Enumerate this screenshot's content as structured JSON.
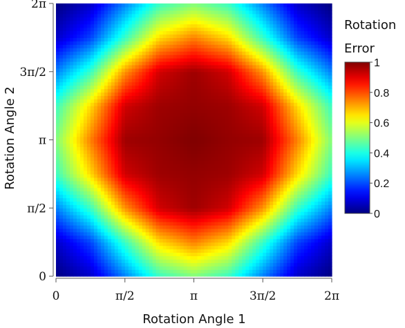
{
  "chart_data": {
    "type": "heatmap",
    "xlabel": "Rotation Angle 1",
    "ylabel": "Rotation Angle 2",
    "x_range": [
      0,
      6.283185307
    ],
    "y_range": [
      0,
      6.283185307
    ],
    "x_ticks": [
      {
        "value": 0,
        "label": "0"
      },
      {
        "value": 1.570796327,
        "label": "π/2"
      },
      {
        "value": 3.141592654,
        "label": "π"
      },
      {
        "value": 4.71238898,
        "label": "3π/2"
      },
      {
        "value": 6.283185307,
        "label": "2π"
      }
    ],
    "y_ticks": [
      {
        "value": 0,
        "label": "0"
      },
      {
        "value": 1.570796327,
        "label": "π/2"
      },
      {
        "value": 3.141592654,
        "label": "π"
      },
      {
        "value": 4.71238898,
        "label": "3π/2"
      },
      {
        "value": 6.283185307,
        "label": "2π"
      }
    ],
    "grid_x": [
      0,
      0.785398163,
      1.570796327,
      2.35619449,
      3.141592654,
      3.926990817,
      4.71238898,
      5.497787144,
      6.283185307
    ],
    "grid_y": [
      0,
      0.785398163,
      1.570796327,
      2.35619449,
      3.141592654,
      3.926990817,
      4.71238898,
      5.497787144,
      6.283185307
    ],
    "z": [
      [
        0.0,
        0.07,
        0.25,
        0.43,
        0.5,
        0.43,
        0.25,
        0.07,
        0.0
      ],
      [
        0.07,
        0.19,
        0.43,
        0.66,
        0.75,
        0.66,
        0.43,
        0.19,
        0.07
      ],
      [
        0.25,
        0.43,
        0.73,
        0.92,
        0.97,
        0.92,
        0.73,
        0.43,
        0.25
      ],
      [
        0.43,
        0.66,
        0.92,
        0.97,
        0.98,
        0.97,
        0.92,
        0.66,
        0.43
      ],
      [
        0.5,
        0.75,
        0.97,
        0.98,
        1.0,
        0.98,
        0.97,
        0.75,
        0.5
      ],
      [
        0.43,
        0.66,
        0.92,
        0.97,
        0.98,
        0.97,
        0.92,
        0.66,
        0.43
      ],
      [
        0.25,
        0.43,
        0.73,
        0.92,
        0.97,
        0.92,
        0.73,
        0.43,
        0.25
      ],
      [
        0.07,
        0.19,
        0.43,
        0.66,
        0.75,
        0.66,
        0.43,
        0.19,
        0.07
      ],
      [
        0.0,
        0.07,
        0.25,
        0.43,
        0.5,
        0.43,
        0.25,
        0.07,
        0.0
      ]
    ],
    "colorscale": "jet",
    "colorbar": {
      "title_lines": [
        "Rotation",
        "Error"
      ],
      "range": [
        0,
        1
      ],
      "ticks": [
        {
          "value": 0,
          "label": "0"
        },
        {
          "value": 0.2,
          "label": "0.2"
        },
        {
          "value": 0.4,
          "label": "0.4"
        },
        {
          "value": 0.6,
          "label": "0.6"
        },
        {
          "value": 0.8,
          "label": "0.8"
        },
        {
          "value": 1,
          "label": "1"
        }
      ]
    },
    "grid": false
  }
}
